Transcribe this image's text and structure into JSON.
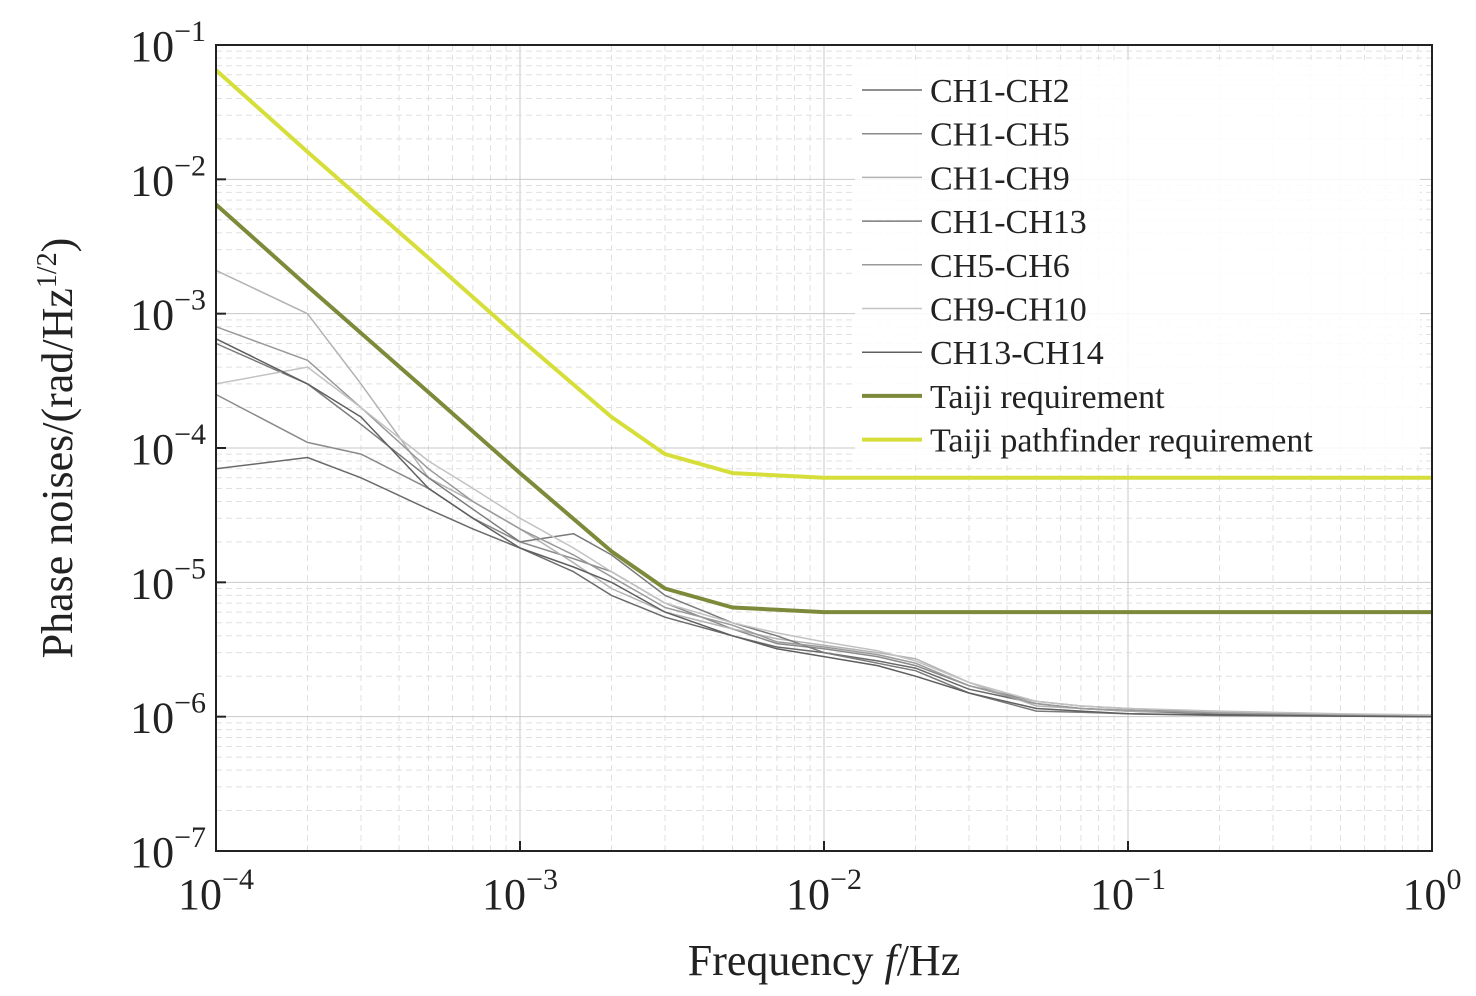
{
  "chart_data": {
    "type": "line",
    "xscale": "log",
    "yscale": "log",
    "xlim": [
      0.0001,
      1
    ],
    "ylim": [
      1e-07,
      0.1
    ],
    "xlabel": "Frequency f/Hz",
    "xlabel_parts": {
      "pre": "Frequency ",
      "italic": "f",
      "post": "/Hz"
    },
    "ylabel": "Phase noises/(rad/Hz^(1/2))",
    "ylabel_parts": {
      "main": "Phase noises/(rad/Hz",
      "sup": "1/2",
      "close": ")"
    },
    "grid": true,
    "legend_position": "top-right",
    "x_ticks": [
      {
        "value": 0.0001,
        "base": "10",
        "exp": "−4"
      },
      {
        "value": 0.001,
        "base": "10",
        "exp": "−3"
      },
      {
        "value": 0.01,
        "base": "10",
        "exp": "−2"
      },
      {
        "value": 0.1,
        "base": "10",
        "exp": "−1"
      },
      {
        "value": 1,
        "base": "10",
        "exp": "0"
      }
    ],
    "y_ticks": [
      {
        "value": 0.1,
        "base": "10",
        "exp": "−1"
      },
      {
        "value": 0.01,
        "base": "10",
        "exp": "−2"
      },
      {
        "value": 0.001,
        "base": "10",
        "exp": "−3"
      },
      {
        "value": 0.0001,
        "base": "10",
        "exp": "−4"
      },
      {
        "value": 1e-05,
        "base": "10",
        "exp": "−5"
      },
      {
        "value": 1e-06,
        "base": "10",
        "exp": "−6"
      },
      {
        "value": 1e-07,
        "base": "10",
        "exp": "−7"
      }
    ],
    "series": [
      {
        "name": "CH1-CH2",
        "color": "#6a6a6a",
        "width": 1.5,
        "x": [
          0.0001,
          0.0002,
          0.0003,
          0.0005,
          0.0007,
          0.001,
          0.0015,
          0.002,
          0.003,
          0.005,
          0.007,
          0.01,
          0.015,
          0.02,
          0.03,
          0.05,
          0.07,
          0.1,
          0.2,
          0.5,
          1
        ],
        "y": [
          7e-05,
          8.5e-05,
          6e-05,
          3.5e-05,
          2.5e-05,
          1.8e-05,
          1.2e-05,
          8e-06,
          5.5e-06,
          4e-06,
          3.3e-06,
          3e-06,
          2.6e-06,
          2.3e-06,
          1.6e-06,
          1.25e-06,
          1.15e-06,
          1.1e-06,
          1.05e-06,
          1.02e-06,
          1e-06
        ]
      },
      {
        "name": "CH1-CH5",
        "color": "#8a8a8a",
        "width": 1.5,
        "x": [
          0.0001,
          0.0002,
          0.0003,
          0.0005,
          0.0007,
          0.001,
          0.0015,
          0.002,
          0.003,
          0.005,
          0.007,
          0.01,
          0.015,
          0.02,
          0.03,
          0.05,
          0.07,
          0.1,
          0.2,
          0.5,
          1
        ],
        "y": [
          0.00025,
          0.00011,
          9e-05,
          5e-05,
          3e-05,
          2e-05,
          1.5e-05,
          1.2e-05,
          7e-06,
          4.5e-06,
          3.5e-06,
          3.2e-06,
          2.8e-06,
          2.4e-06,
          1.7e-06,
          1.3e-06,
          1.2e-06,
          1.15e-06,
          1.08e-06,
          1.03e-06,
          1.01e-06
        ]
      },
      {
        "name": "CH1-CH9",
        "color": "#b2b2b2",
        "width": 1.5,
        "x": [
          0.0001,
          0.0002,
          0.0003,
          0.0005,
          0.0007,
          0.001,
          0.0015,
          0.002,
          0.003,
          0.005,
          0.007,
          0.01,
          0.015,
          0.02,
          0.03,
          0.05,
          0.07,
          0.1,
          0.2,
          0.5,
          1
        ],
        "y": [
          0.0021,
          0.001,
          0.0003,
          6e-05,
          4e-05,
          2.5e-05,
          1.4e-05,
          9e-06,
          6e-06,
          4.5e-06,
          3.8e-06,
          3.4e-06,
          3e-06,
          2.7e-06,
          1.8e-06,
          1.2e-06,
          1.15e-06,
          1.1e-06,
          1.08e-06,
          1.04e-06,
          1.02e-06
        ]
      },
      {
        "name": "CH1-CH13",
        "color": "#7a7a7a",
        "width": 1.5,
        "x": [
          0.0001,
          0.0002,
          0.0003,
          0.0005,
          0.0007,
          0.001,
          0.0015,
          0.002,
          0.003,
          0.005,
          0.007,
          0.01,
          0.015,
          0.02,
          0.03,
          0.05,
          0.07,
          0.1,
          0.2,
          0.5,
          1
        ],
        "y": [
          0.0006,
          0.0003,
          0.00015,
          6e-05,
          3.5e-05,
          2e-05,
          2.3e-05,
          1.6e-05,
          8e-06,
          5e-06,
          4e-06,
          3e-06,
          2.5e-06,
          2.2e-06,
          1.5e-06,
          1.1e-06,
          1.08e-06,
          1.05e-06,
          1.02e-06,
          1.01e-06,
          1e-06
        ]
      },
      {
        "name": "CH5-CH6",
        "color": "#9a9a9a",
        "width": 1.5,
        "x": [
          0.0001,
          0.0002,
          0.0003,
          0.0005,
          0.0007,
          0.001,
          0.0015,
          0.002,
          0.003,
          0.005,
          0.007,
          0.01,
          0.015,
          0.02,
          0.03,
          0.05,
          0.07,
          0.1,
          0.2,
          0.5,
          1
        ],
        "y": [
          0.0008,
          0.00045,
          0.0002,
          7e-05,
          4e-05,
          2.5e-05,
          1.6e-05,
          1.1e-05,
          6.5e-06,
          4.8e-06,
          3.6e-06,
          3.3e-06,
          2.9e-06,
          2.5e-06,
          1.7e-06,
          1.25e-06,
          1.15e-06,
          1.12e-06,
          1.06e-06,
          1.03e-06,
          1.01e-06
        ]
      },
      {
        "name": "CH9-CH10",
        "color": "#c2c2c2",
        "width": 1.5,
        "x": [
          0.0001,
          0.0002,
          0.0003,
          0.0005,
          0.0007,
          0.001,
          0.0015,
          0.002,
          0.003,
          0.005,
          0.007,
          0.01,
          0.015,
          0.02,
          0.03,
          0.05,
          0.07,
          0.1,
          0.2,
          0.5,
          1
        ],
        "y": [
          0.0003,
          0.0004,
          0.0002,
          8e-05,
          5e-05,
          3e-05,
          1.8e-05,
          1.2e-05,
          7e-06,
          5e-06,
          4.2e-06,
          3.6e-06,
          3.1e-06,
          2.6e-06,
          1.8e-06,
          1.3e-06,
          1.2e-06,
          1.15e-06,
          1.1e-06,
          1.05e-06,
          1.03e-06
        ]
      },
      {
        "name": "CH13-CH14",
        "color": "#5f5f5f",
        "width": 1.5,
        "x": [
          0.0001,
          0.0002,
          0.0003,
          0.0005,
          0.0007,
          0.001,
          0.0015,
          0.002,
          0.003,
          0.005,
          0.007,
          0.01,
          0.015,
          0.02,
          0.03,
          0.05,
          0.07,
          0.1,
          0.2,
          0.5,
          1
        ],
        "y": [
          0.00065,
          0.0003,
          0.00017,
          5e-05,
          3e-05,
          1.8e-05,
          1.3e-05,
          1e-05,
          6e-06,
          4e-06,
          3.2e-06,
          2.8e-06,
          2.4e-06,
          2e-06,
          1.5e-06,
          1.15e-06,
          1.1e-06,
          1.05e-06,
          1.03e-06,
          1.01e-06,
          1e-06
        ]
      },
      {
        "name": "Taiji requirement",
        "color": "#7c8a3a",
        "width": 4,
        "x": [
          0.0001,
          0.0002,
          0.0005,
          0.001,
          0.002,
          0.003,
          0.005,
          0.01,
          0.1,
          1
        ],
        "y": [
          0.0065,
          0.0016,
          0.00026,
          6.5e-05,
          1.7e-05,
          9e-06,
          6.5e-06,
          6e-06,
          6e-06,
          6e-06
        ]
      },
      {
        "name": "Taiji pathfinder requirement",
        "color": "#d6df3a",
        "width": 4,
        "x": [
          0.0001,
          0.0002,
          0.0005,
          0.001,
          0.002,
          0.003,
          0.005,
          0.01,
          0.1,
          1
        ],
        "y": [
          0.065,
          0.016,
          0.0026,
          0.00065,
          0.00017,
          9e-05,
          6.5e-05,
          6e-05,
          6e-05,
          6e-05
        ]
      }
    ]
  }
}
